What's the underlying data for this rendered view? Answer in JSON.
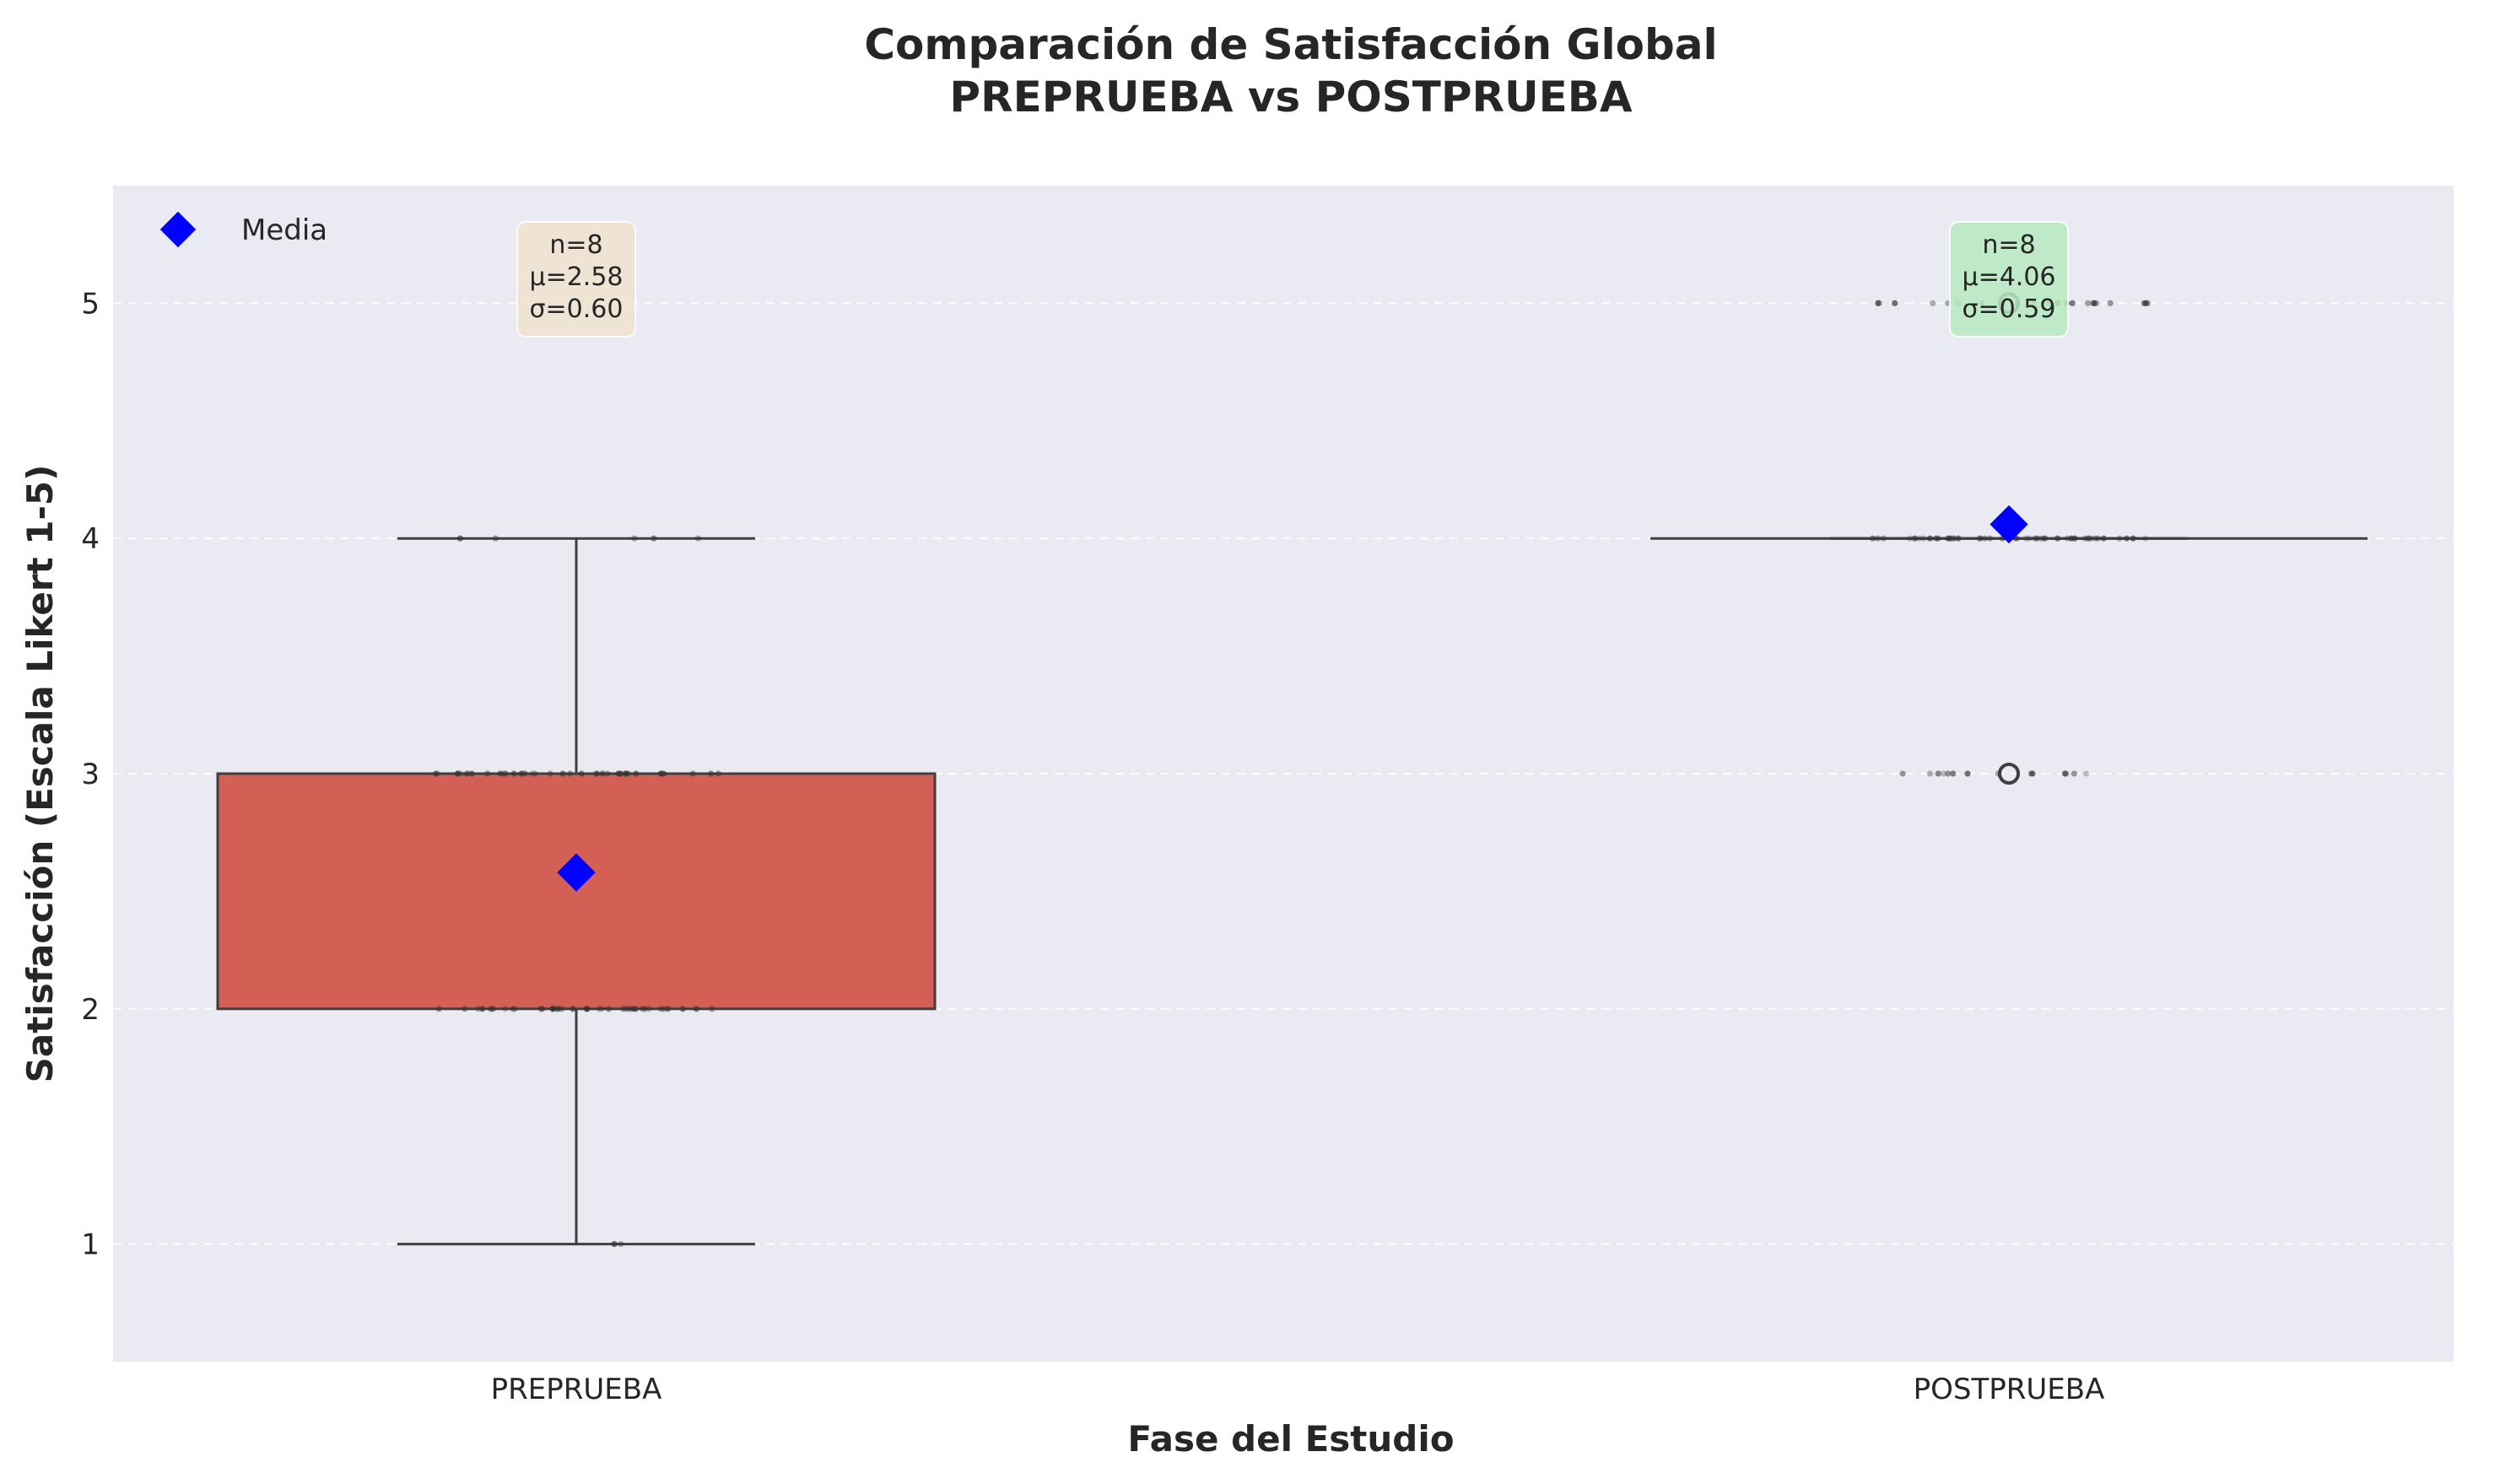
{
  "chart_data": {
    "type": "box",
    "title_lines": [
      "Comparación de Satisfacción Global",
      "PREPRUEBA vs POSTPRUEBA"
    ],
    "xlabel": "Fase del Estudio",
    "ylabel": "Satisfacción (Escala Likert 1-5)",
    "ylim": [
      0.5,
      5.5
    ],
    "yticks": [
      1,
      2,
      3,
      4,
      5
    ],
    "grid": true,
    "legend": {
      "position": "top-left",
      "entries": [
        {
          "label": "Media",
          "marker": "diamond",
          "color": "#0000ff"
        }
      ]
    },
    "categories": [
      "PREPRUEBA",
      "POSTPRUEBA"
    ],
    "boxes": [
      {
        "category": "PREPRUEBA",
        "whisker_low": 1,
        "q1": 2,
        "median": 3,
        "q3": 3,
        "whisker_high": 4,
        "mean": 2.58,
        "outliers": [],
        "box_color": "#d35f55",
        "stats": {
          "n": "n=8",
          "mean": "μ=2.58",
          "sd": "σ=0.60"
        },
        "stats_box_color": "#f1e2cf"
      },
      {
        "category": "POSTPRUEBA",
        "whisker_low": 4,
        "q1": 4,
        "median": 4,
        "q3": 4,
        "whisker_high": 4,
        "mean": 4.06,
        "outliers": [
          3,
          5
        ],
        "box_color": "#d35f55",
        "stats": {
          "n": "n=8",
          "mean": "μ=4.06",
          "sd": "σ=0.59"
        },
        "stats_box_color": "#b8ebc0"
      }
    ],
    "jitter_points": [
      {
        "category": "PREPRUEBA",
        "value": 1,
        "count": 2
      },
      {
        "category": "PREPRUEBA",
        "value": 2,
        "count": 40
      },
      {
        "category": "PREPRUEBA",
        "value": 3,
        "count": 40
      },
      {
        "category": "PREPRUEBA",
        "value": 4,
        "count": 5
      },
      {
        "category": "POSTPRUEBA",
        "value": 3,
        "count": 14
      },
      {
        "category": "POSTPRUEBA",
        "value": 4,
        "count": 40
      },
      {
        "category": "POSTPRUEBA",
        "value": 5,
        "count": 24
      }
    ]
  }
}
